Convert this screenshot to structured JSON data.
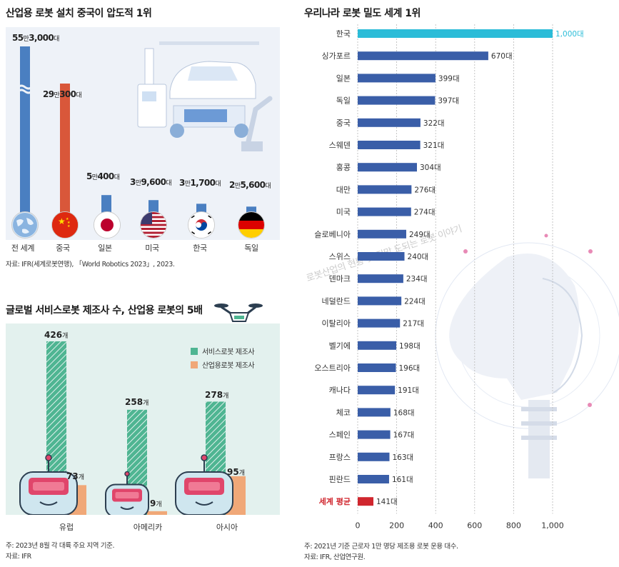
{
  "left_top": {
    "title": "산업용 로봇 설치 중국이 압도적 1위",
    "source": "자료: IFR(세계로봇연맹), 「World Robotics 2023」, 2023.",
    "chart_data": {
      "type": "bar",
      "title": "산업용 로봇 설치 중국이 압도적 1위",
      "categories": [
        "전 세계",
        "중국",
        "일본",
        "미국",
        "한국",
        "독일"
      ],
      "values": [
        553000,
        290300,
        50400,
        39600,
        31700,
        25600
      ],
      "value_labels": [
        {
          "big1": "55",
          "unit1": "만",
          "big2": "3,000",
          "unit2": "대"
        },
        {
          "big1": "29",
          "unit1": "만",
          "big2": "300",
          "unit2": "대"
        },
        {
          "big1": "5",
          "unit1": "만",
          "big2": "400",
          "unit2": "대"
        },
        {
          "big1": "3",
          "unit1": "만",
          "big2": "9,600",
          "unit2": "대"
        },
        {
          "big1": "3",
          "unit1": "만",
          "big2": "1,700",
          "unit2": "대"
        },
        {
          "big1": "2",
          "unit1": "만",
          "big2": "5,600",
          "unit2": "대"
        }
      ],
      "bar_colors": [
        "#4a7fc1",
        "#d9573a",
        "#4a7fc1",
        "#4a7fc1",
        "#4a7fc1",
        "#4a7fc1"
      ],
      "axis_break": true
    },
    "flags": [
      "globe-icon",
      "china-flag-icon",
      "japan-flag-icon",
      "usa-flag-icon",
      "korea-flag-icon",
      "germany-flag-icon"
    ]
  },
  "left_bottom": {
    "title": "글로벌 서비스로봇 제조사 수, 산업용 로봇의 5배",
    "note": "주: 2023년 8월 각 대륙 주요 지역 기준.",
    "source": "자료: IFR",
    "chart_data": {
      "type": "bar",
      "title": "글로벌 서비스로봇 제조사 수, 산업용 로봇의 5배",
      "categories": [
        "유럽",
        "아메리카",
        "아시아"
      ],
      "series": [
        {
          "name": "서비스로봇 제조사",
          "values": [
            426,
            258,
            278
          ],
          "labels": [
            "426개",
            "258개",
            "278개"
          ],
          "color": "#4fb592"
        },
        {
          "name": "산업용로봇 제조사",
          "values": [
            73,
            9,
            95
          ],
          "labels": [
            "73개",
            "9개",
            "95개"
          ],
          "color": "#f0a878"
        }
      ],
      "legend": "top-right"
    }
  },
  "right": {
    "title": "우리나라 로봇 밀도 세계 1위",
    "note": "주: 2021년 기준 근로자 1만 명당 제조용 로봇 운용 대수.",
    "source": "자료: IFR, 산업연구원.",
    "watermark": "로봇산업의 현황 및 전망 도되는 로봇 이야기",
    "chart_data": {
      "type": "bar",
      "orientation": "horizontal",
      "title": "우리나라 로봇 밀도 세계 1위",
      "categories": [
        "한국",
        "싱가포르",
        "일본",
        "독일",
        "중국",
        "스웨덴",
        "홍콩",
        "대만",
        "미국",
        "슬로베니아",
        "스위스",
        "덴마크",
        "네덜란드",
        "이탈리아",
        "벨기에",
        "오스트리아",
        "캐나다",
        "체코",
        "스페인",
        "프랑스",
        "핀란드",
        "세계 평균"
      ],
      "values": [
        1000,
        670,
        399,
        397,
        322,
        321,
        304,
        276,
        274,
        249,
        240,
        234,
        224,
        217,
        198,
        196,
        191,
        168,
        167,
        163,
        161,
        141
      ],
      "labels": [
        "1,000대",
        "670대",
        "399대",
        "397대",
        "322대",
        "321대",
        "304대",
        "276대",
        "274대",
        "249대",
        "240대",
        "234대",
        "224대",
        "217대",
        "198대",
        "196대",
        "191대",
        "168대",
        "167대",
        "163대",
        "161대",
        "141대"
      ],
      "highlight": {
        "한국": "#2bbcd8",
        "세계 평균": "#d0262e"
      },
      "default_color": "#3a5ea8",
      "xlim": [
        0,
        1000
      ],
      "xticks": [
        0,
        200,
        400,
        600,
        800,
        1000
      ],
      "xtick_labels": [
        "0",
        "200",
        "400",
        "600",
        "800",
        "1,000"
      ],
      "grid": true
    }
  }
}
